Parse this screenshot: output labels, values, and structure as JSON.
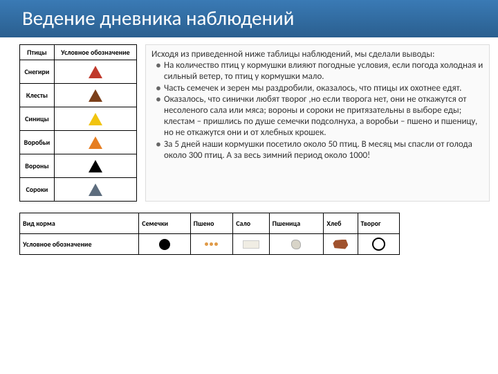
{
  "title": "Ведение дневника наблюдений",
  "birds_table": {
    "headers": [
      "Птицы",
      "Условное обозначение"
    ],
    "rows": [
      {
        "name": "Снегири",
        "symbol": "triangle",
        "color": "#c0392b"
      },
      {
        "name": "Клесты",
        "symbol": "triangle",
        "color": "#7b3f1a"
      },
      {
        "name": "Синицы",
        "symbol": "triangle",
        "color": "#f1c40f"
      },
      {
        "name": "Воробьи",
        "symbol": "triangle",
        "color": "#e67e22"
      },
      {
        "name": "Вороны",
        "symbol": "triangle",
        "color": "#000000"
      },
      {
        "name": "Сороки",
        "symbol": "triangle",
        "color": "#5d6d7e"
      }
    ]
  },
  "intro": "Исходя из приведенной ниже таблицы наблюдений, мы сделали выводы:",
  "bullets": [
    "На количество птиц у кормушки влияют погодные условия, если погода холодная и сильный ветер, то птиц у кормушки мало.",
    "Часть семечек и зерен мы раздробили, оказалось, что птицы их охотнее едят.",
    "Оказалось, что синички любят творог ,но если творога нет, они не откажутся от несоленого сала или мяса; вороны и сороки не притязательны в выборе еды; клестам – пришлись по душе семечки подсолнуха, а воробьи – пшено и пшеницу, но не откажутся они и от хлебных крошек.",
    "За 5 дней наши кормушки посетило около 50 птиц. В месяц мы спасли от голода около 300 птиц. А за весь зимний период около 1000!"
  ],
  "food_table": {
    "row_label": "Вид корма",
    "symbol_label": "Условное обозначение",
    "items": [
      {
        "name": "Семечки",
        "icon": "circle-black"
      },
      {
        "name": "Пшено",
        "icon": "millet"
      },
      {
        "name": "Сало",
        "icon": "lard"
      },
      {
        "name": "Пшеница",
        "icon": "wheat"
      },
      {
        "name": "Хлеб",
        "icon": "bread"
      },
      {
        "name": "Творог",
        "icon": "ring"
      }
    ]
  },
  "colors": {
    "banner_bg": "#2e6da4",
    "banner_text": "#ffffff",
    "body_text": "#333333"
  }
}
